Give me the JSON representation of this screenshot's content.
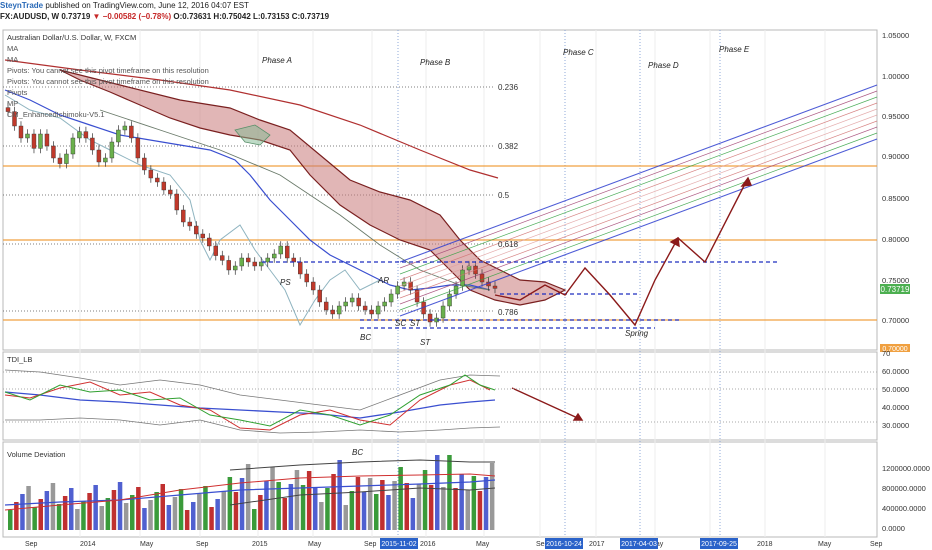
{
  "header": {
    "user": "SteynTrade",
    "text": "published on TradingView.com, June 12, 2016 04:07 EST"
  },
  "ticker": {
    "symbol": "FX:AUDUSD, W",
    "price": "0.73719",
    "change": "−0.00582 (−0.78%)",
    "ohlc": "O:0.73631 H:0.75042 L:0.73153 C:0.73719"
  },
  "main_pane": {
    "title": "Australian Dollar/U.S. Dollar, W, FXCM",
    "indicators": [
      "MA",
      "MA",
      "Pivots: You cannot see this pivot timeframe on this resolution",
      "Pivots: You cannot see this pivot timeframe on this resolution",
      "Pivots",
      "MP",
      "CM_EnhancedIchimoku-V5.1"
    ],
    "phases": [
      "Phase A",
      "Phase B",
      "Phase C",
      "Phase D",
      "Phase E"
    ],
    "fib_levels": [
      "0.236",
      "0.382",
      "0.5",
      "0.618",
      "0.786"
    ],
    "wyckoff": [
      "PS",
      "AR",
      "SC",
      "ST",
      "BC",
      "ST",
      "Spring"
    ],
    "price_axis": [
      "1.05000",
      "1.00000",
      "0.95000",
      "0.90000",
      "0.85000",
      "0.80000",
      "0.75000",
      "0.70000"
    ],
    "last_price": "0.73719",
    "last_price_color": "#4caf50",
    "bottom_badge": "0.70000"
  },
  "tdi_pane": {
    "title": "TDI_LB",
    "axis": [
      "70",
      "60.0000",
      "50.0000",
      "40.0000",
      "30.0000"
    ]
  },
  "vol_pane": {
    "title": "Volume Deviation",
    "bc": "BC",
    "axis": [
      "1200000.0000",
      "800000.0000",
      "400000.0000",
      "0.0000"
    ]
  },
  "time_axis": {
    "labels": [
      "Sep",
      "2014",
      "May",
      "Sep",
      "2015",
      "May",
      "Sep",
      "2016",
      "May",
      "Sep",
      "2017",
      "May",
      "2018",
      "May",
      "Sep"
    ],
    "highlighted": [
      "2015-11-02",
      "2016-10-24",
      "2017-04-03",
      "2017-09-25"
    ]
  },
  "colors": {
    "cloud_bear": "#c97a7a",
    "cloud_bull": "#7fb88f",
    "channel_blue": "#2f3fcf",
    "arrow": "#8b1a1a",
    "orange": "#f0a040",
    "dashed_blue": "#1f2fbf"
  },
  "chart_data": {
    "type": "candlestick",
    "title": "Australian Dollar/U.S. Dollar, W, FXCM",
    "ylim": [
      0.66,
      1.06
    ],
    "y_ticks": [
      1.05,
      1.0,
      0.95,
      0.9,
      0.85,
      0.8,
      0.75,
      0.7
    ],
    "close_series": [
      0.958,
      0.94,
      0.925,
      0.93,
      0.912,
      0.93,
      0.915,
      0.9,
      0.893,
      0.905,
      0.925,
      0.933,
      0.925,
      0.91,
      0.895,
      0.9,
      0.92,
      0.935,
      0.94,
      0.925,
      0.9,
      0.885,
      0.875,
      0.87,
      0.86,
      0.855,
      0.835,
      0.82,
      0.815,
      0.805,
      0.8,
      0.79,
      0.778,
      0.772,
      0.76,
      0.765,
      0.775,
      0.77,
      0.765,
      0.77,
      0.775,
      0.78,
      0.79,
      0.775,
      0.77,
      0.755,
      0.745,
      0.735,
      0.72,
      0.71,
      0.705,
      0.715,
      0.72,
      0.725,
      0.715,
      0.71,
      0.705,
      0.715,
      0.72,
      0.73,
      0.74,
      0.745,
      0.735,
      0.72,
      0.705,
      0.695,
      0.7,
      0.715,
      0.73,
      0.74,
      0.76,
      0.765,
      0.755,
      0.745,
      0.74,
      0.737
    ],
    "horizontal_levels": [
      0.888,
      0.8,
      0.7
    ],
    "current_price": 0.73719
  }
}
